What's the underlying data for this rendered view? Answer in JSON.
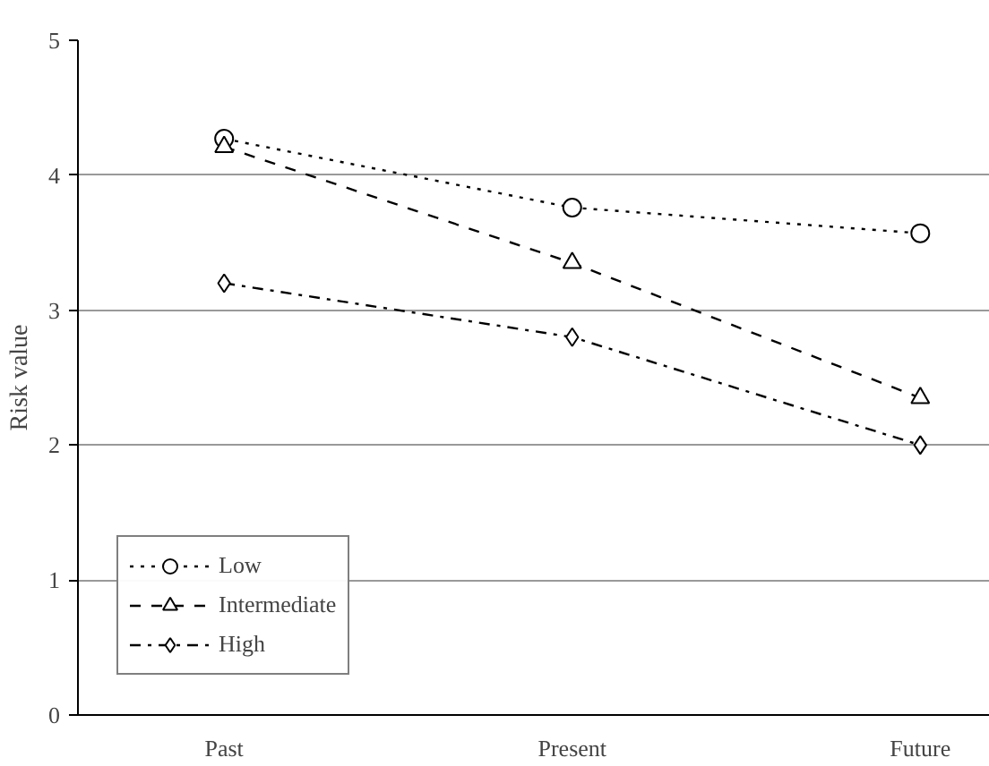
{
  "chart_data": {
    "type": "line",
    "ylabel": "Risk value",
    "categories": [
      "Past",
      "Present",
      "Future"
    ],
    "series": [
      {
        "name": "Low",
        "color": "#000000",
        "values": [
          4.27,
          3.76,
          3.57
        ],
        "marker": "circle",
        "line_style": "dotted"
      },
      {
        "name": "Intermediate",
        "color": "#000000",
        "values": [
          4.21,
          3.35,
          2.35
        ],
        "marker": "triangle",
        "line_style": "dashed"
      },
      {
        "name": "High",
        "color": "#000000",
        "values": [
          3.2,
          2.8,
          2.0
        ],
        "marker": "diamond",
        "line_style": "dashdot"
      }
    ],
    "ylim": [
      0,
      5
    ],
    "yticks": [
      0,
      1,
      2,
      3,
      4,
      5
    ],
    "grid": "y",
    "legend": "bottom left"
  }
}
